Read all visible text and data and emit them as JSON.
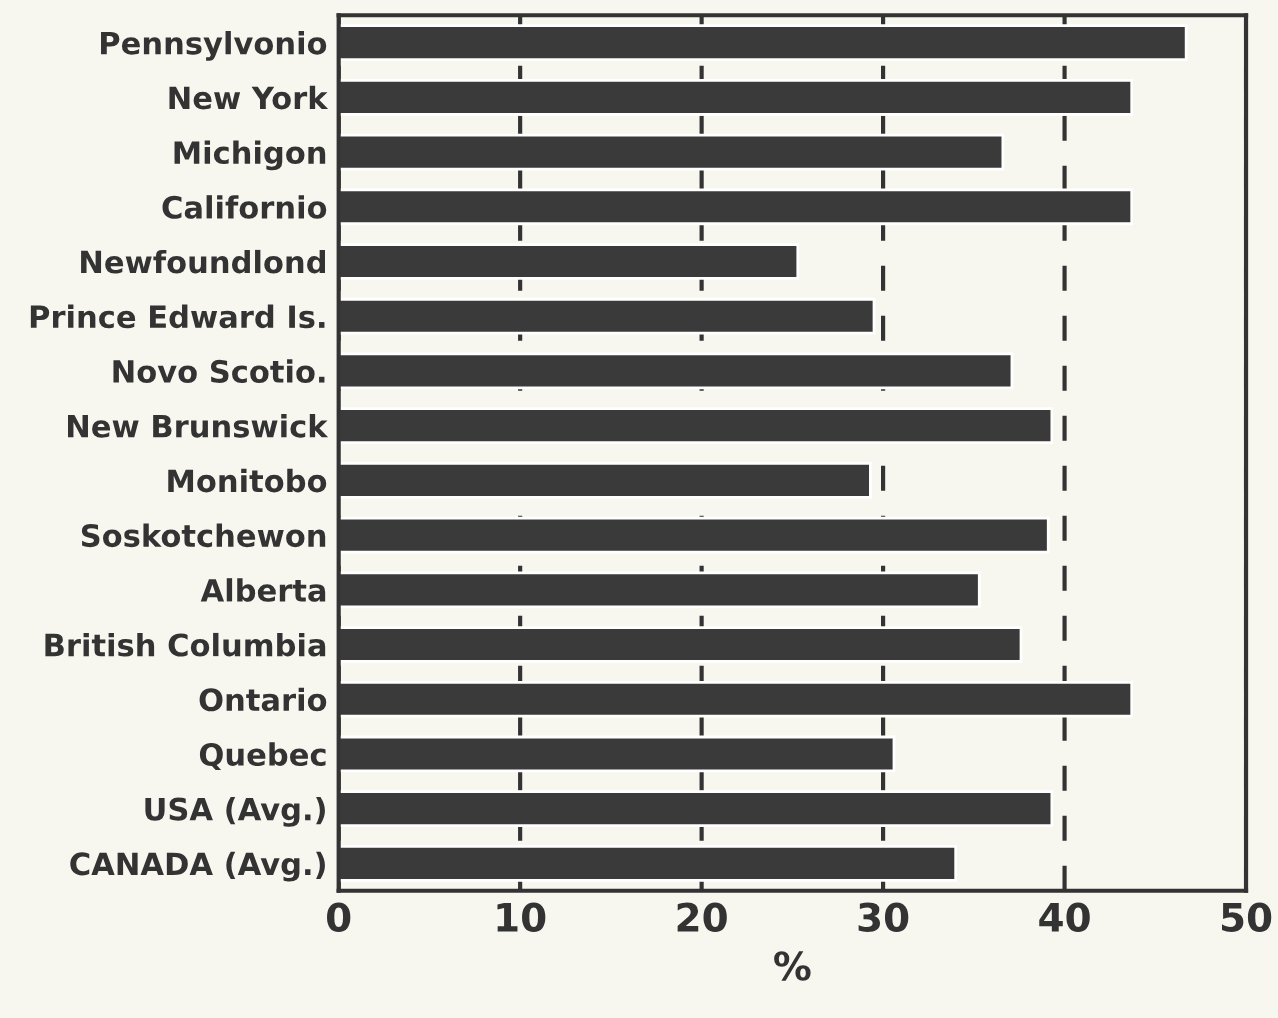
{
  "chart_data": {
    "type": "bar",
    "orientation": "horizontal",
    "xlabel": "%",
    "categories": [
      "Pennsylvonio",
      "New York",
      "Michigon",
      "Californio",
      "Newfoundlond",
      "Prince Edward Is.",
      "Novo Scotio.",
      "New Brunswick",
      "Monitobo",
      "Soskotchewon",
      "Alberta",
      "British Columbia",
      "Ontario",
      "Quebec",
      "USA (Avg.)",
      "CANADA (Avg.)"
    ],
    "values": [
      46.7,
      43.7,
      36.6,
      43.7,
      25.3,
      29.5,
      37.1,
      39.3,
      29.3,
      39.1,
      35.3,
      37.6,
      43.7,
      30.6,
      39.3,
      34.0
    ],
    "color": "#3a3a3a",
    "xlim": [
      0,
      50
    ],
    "xticks": [
      0,
      10,
      20,
      30,
      40,
      50
    ],
    "grid": "x",
    "line_style": "dashed"
  }
}
